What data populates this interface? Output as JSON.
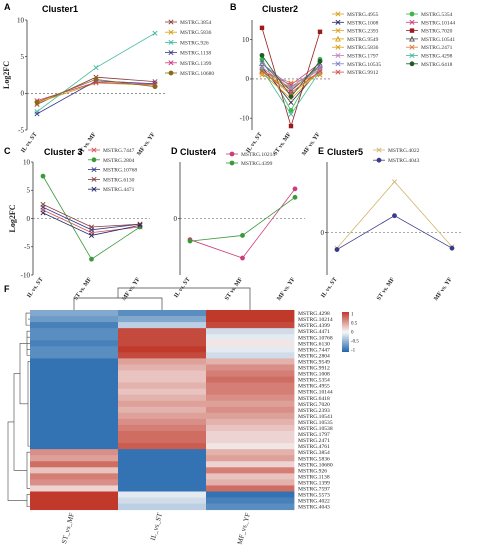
{
  "x_categories": [
    "IL vs. ST",
    "ST vs. MF",
    "MF vs. YF"
  ],
  "y_axis_label": "Log2FC",
  "chart_data": [
    {
      "panel": "A",
      "type": "line",
      "title": "Cluster1",
      "ylim": [
        -5,
        10
      ],
      "yticks": [
        -5,
        0,
        5,
        10
      ],
      "categories": [
        "IL vs. ST",
        "ST vs. MF",
        "MF vs. YF"
      ],
      "series": [
        {
          "name": "MSTRG.3854",
          "values": [
            -1.5,
            2.2,
            1.6
          ],
          "color": "#8b3a3a",
          "marker": "x"
        },
        {
          "name": "MSTRG.5836",
          "values": [
            -1.3,
            1.4,
            1.1
          ],
          "color": "#d4a017",
          "marker": "x"
        },
        {
          "name": "MSTRG.926",
          "values": [
            -2.5,
            3.5,
            8.2
          ],
          "color": "#3cb89c",
          "marker": "x"
        },
        {
          "name": "MSTRG.1138",
          "values": [
            -2.8,
            1.7,
            1.3
          ],
          "color": "#3a3a8b",
          "marker": "x"
        },
        {
          "name": "MSTRG.1399",
          "values": [
            -1.0,
            1.5,
            1.2
          ],
          "color": "#cc3e7a",
          "marker": "x"
        },
        {
          "name": "MSTRG.10680",
          "values": [
            -1.2,
            1.9,
            0.9
          ],
          "color": "#8b6914",
          "marker": "circle"
        }
      ]
    },
    {
      "panel": "B",
      "type": "line",
      "title": "Cluster2",
      "ylim": [
        -13,
        15
      ],
      "yticks": [
        -10,
        0,
        10
      ],
      "categories": [
        "IL vs. ST",
        "ST vs. MF",
        "MF vs. YF"
      ],
      "series": [
        {
          "name": "MSTRG.4955",
          "values": [
            2.5,
            -3.0,
            3.0
          ],
          "color": "#d4a017",
          "marker": "x"
        },
        {
          "name": "MSTRG.5354",
          "values": [
            5.0,
            -8.0,
            5.0
          ],
          "color": "#3cb84a",
          "marker": "circle"
        },
        {
          "name": "MSTRG.1008",
          "values": [
            3.0,
            -6.0,
            2.5
          ],
          "color": "#2a2a6a",
          "marker": "x"
        },
        {
          "name": "MSTRG.10144",
          "values": [
            2.0,
            -1.5,
            4.0
          ],
          "color": "#cc3e7a",
          "marker": "x"
        },
        {
          "name": "MSTRG.2393",
          "values": [
            1.5,
            -5.0,
            2.0
          ],
          "color": "#e0a020",
          "marker": "x"
        },
        {
          "name": "MSTRG.7020",
          "values": [
            13.0,
            -12.0,
            12.0
          ],
          "color": "#9b1b1b",
          "marker": "square"
        },
        {
          "name": "MSTRG.9549",
          "values": [
            2.0,
            -4.0,
            2.0
          ],
          "color": "#d4a017",
          "marker": "triangle"
        },
        {
          "name": "MSTRG.10541",
          "values": [
            4.0,
            -3.0,
            3.5
          ],
          "color": "#555555",
          "marker": "triangle"
        },
        {
          "name": "MSTRG.5836",
          "values": [
            1.0,
            -2.0,
            1.5
          ],
          "color": "#d4a017",
          "marker": "x"
        },
        {
          "name": "MSTRG.2471",
          "values": [
            2.0,
            -1.0,
            1.0
          ],
          "color": "#e07a3a",
          "marker": "x"
        },
        {
          "name": "MSTRG.1797",
          "values": [
            3.0,
            -2.5,
            2.5
          ],
          "color": "#c080c0",
          "marker": "x"
        },
        {
          "name": "MSTRG.4298",
          "values": [
            2.5,
            -9.0,
            2.0
          ],
          "color": "#3cb89c",
          "marker": "x"
        },
        {
          "name": "MSTRG.10535",
          "values": [
            4.0,
            -2.0,
            3.0
          ],
          "color": "#8080d0",
          "marker": "x"
        },
        {
          "name": "MSTRG.6418",
          "values": [
            6.0,
            -4.5,
            4.5
          ],
          "color": "#1f5a2a",
          "marker": "circle"
        },
        {
          "name": "MSTRG.9912",
          "values": [
            2.0,
            -3.5,
            2.0
          ],
          "color": "#d05050",
          "marker": "x"
        }
      ]
    },
    {
      "panel": "C",
      "type": "line",
      "title": "Cluster 3",
      "ylim": [
        -10,
        10
      ],
      "yticks": [
        -10,
        -5,
        0,
        5,
        10
      ],
      "categories": [
        "IL vs. ST",
        "ST vs. MF",
        "MF vs. YF"
      ],
      "series": [
        {
          "name": "MSTRG.7447",
          "values": [
            1.5,
            -2.5,
            -1.5
          ],
          "color": "#d05050",
          "marker": "x"
        },
        {
          "name": "MSTRG.2804",
          "values": [
            7.5,
            -7.2,
            -1.5
          ],
          "color": "#3a9a3a",
          "marker": "circle"
        },
        {
          "name": "MSTRG.10768",
          "values": [
            2.0,
            -2.0,
            -1.0
          ],
          "color": "#3a3a8b",
          "marker": "x"
        },
        {
          "name": "MSTRG.6130",
          "values": [
            2.5,
            -1.5,
            -1.0
          ],
          "color": "#8b3a3a",
          "marker": "x"
        },
        {
          "name": "MSTRG.4471",
          "values": [
            1.0,
            -3.0,
            -1.2
          ],
          "color": "#2a2a6a",
          "marker": "x"
        }
      ]
    },
    {
      "panel": "D",
      "type": "line",
      "title": "Cluster4",
      "ylim": [
        -4,
        4
      ],
      "yticks": [
        0
      ],
      "categories": [
        "IL vs. ST",
        "ST vs. MF",
        "MF vs. YF"
      ],
      "series": [
        {
          "name": "MSTRG.10214",
          "values": [
            -1.5,
            -2.8,
            2.1
          ],
          "color": "#cc3e7a",
          "marker": "circle"
        },
        {
          "name": "MSTRG.4399",
          "values": [
            -1.6,
            -1.2,
            1.5
          ],
          "color": "#3a9a3a",
          "marker": "circle"
        }
      ]
    },
    {
      "panel": "E",
      "type": "line",
      "title": "Cluster5",
      "ylim": [
        -3,
        5
      ],
      "yticks": [
        0
      ],
      "categories": [
        "IL vs. ST",
        "ST vs. MF",
        "MF vs. YF"
      ],
      "series": [
        {
          "name": "MSTRG.4022",
          "values": [
            -1.1,
            3.6,
            -1.0
          ],
          "color": "#d4b46a",
          "marker": "x"
        },
        {
          "name": "MSTRG.4043",
          "values": [
            -1.2,
            1.2,
            -1.1
          ],
          "color": "#3a3a8b",
          "marker": "circle"
        }
      ]
    },
    {
      "panel": "F",
      "type": "heatmap",
      "columns": [
        "ST_vs_MF",
        "IL_vs_ST",
        "MF_vs_YF"
      ],
      "rows": [
        "MSTRG.4298",
        "MSTRG.10214",
        "MSTRG.4399",
        "MSTRG.4471",
        "MSTRG.10768",
        "MSTRG.6130",
        "MSTRG.7447",
        "MSTRG.2804",
        "MSTRG.9549",
        "MSTRG.9912",
        "MSTRG.1008",
        "MSTRG.5354",
        "MSTRG.4955",
        "MSTRG.10144",
        "MSTRG.6418",
        "MSTRG.7020",
        "MSTRG.2393",
        "MSTRG.10541",
        "MSTRG.10535",
        "MSTRG.10538",
        "MSTRG.1797",
        "MSTRG.2471",
        "MSTRG.4761",
        "MSTRG.3854",
        "MSTRG.5836",
        "MSTRG.10680",
        "MSTRG.926",
        "MSTRG.1138",
        "MSTRG.1399",
        "MSTRG.7597",
        "MSTRG.5573",
        "MSTRG.4022",
        "MSTRG.4043"
      ],
      "values": [
        [
          -0.6,
          -0.8,
          1.1
        ],
        [
          -0.7,
          -0.6,
          1.1
        ],
        [
          -0.9,
          -0.3,
          1.0
        ],
        [
          -0.8,
          1.0,
          -0.2
        ],
        [
          -0.8,
          1.0,
          -0.1
        ],
        [
          -0.9,
          1.0,
          0.1
        ],
        [
          -0.8,
          1.1,
          -0.1
        ],
        [
          -0.8,
          1.0,
          -0.2
        ],
        [
          -1.0,
          0.5,
          0.4
        ],
        [
          -1.0,
          0.4,
          0.6
        ],
        [
          -1.0,
          0.3,
          0.7
        ],
        [
          -1.0,
          0.3,
          0.8
        ],
        [
          -1.0,
          0.4,
          0.7
        ],
        [
          -1.0,
          0.3,
          0.7
        ],
        [
          -1.0,
          0.4,
          0.6
        ],
        [
          -1.0,
          0.5,
          0.5
        ],
        [
          -1.0,
          0.4,
          0.6
        ],
        [
          -1.0,
          0.5,
          0.5
        ],
        [
          -1.0,
          0.6,
          0.4
        ],
        [
          -1.0,
          0.7,
          0.3
        ],
        [
          -1.0,
          0.8,
          0.2
        ],
        [
          -1.0,
          0.8,
          0.2
        ],
        [
          -1.0,
          0.9,
          0.1
        ],
        [
          0.6,
          -1.0,
          0.4
        ],
        [
          0.5,
          -1.0,
          0.5
        ],
        [
          0.8,
          -1.0,
          0.2
        ],
        [
          0.3,
          -1.0,
          0.7
        ],
        [
          0.7,
          -1.0,
          0.3
        ],
        [
          0.6,
          -1.0,
          0.4
        ],
        [
          0.2,
          -1.0,
          0.8
        ],
        [
          1.1,
          -0.1,
          -1.0
        ],
        [
          1.1,
          -0.2,
          -0.9
        ],
        [
          1.1,
          -0.3,
          -0.8
        ]
      ],
      "colorbar_ticks": [
        "1",
        "0.5",
        "0",
        "-0.5",
        "-1"
      ],
      "colors": {
        "high": "#c0392b",
        "mid": "#f7f7f7",
        "low": "#2166ac"
      }
    }
  ]
}
